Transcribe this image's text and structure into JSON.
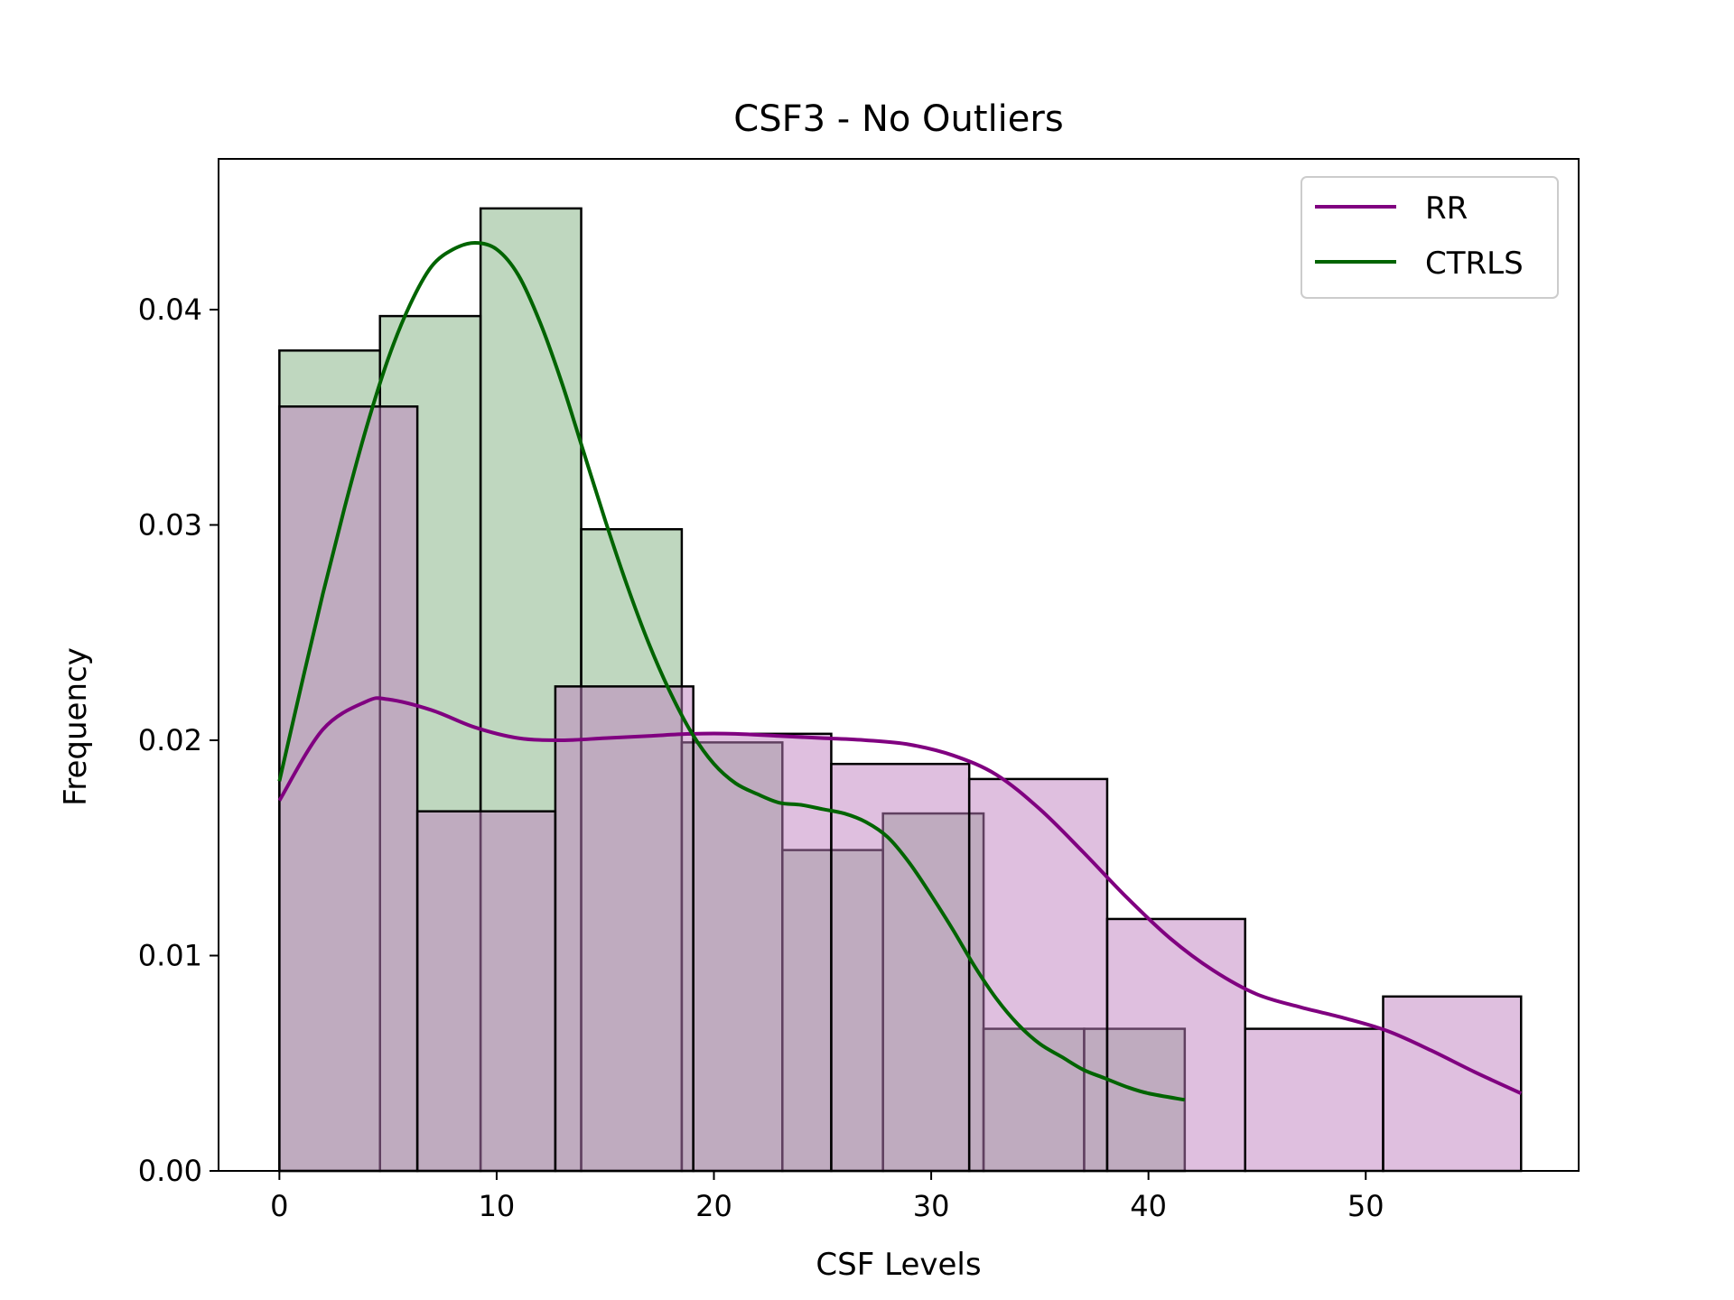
{
  "chart_data": {
    "type": "bar",
    "title": "CSF3 - No Outliers",
    "xlabel": "CSF Levels",
    "ylabel": "Frequency",
    "xlim": [
      -2.8,
      59.8
    ],
    "ylim": [
      0,
      0.047
    ],
    "x_ticks": [
      0,
      10,
      20,
      30,
      40,
      50
    ],
    "x_tick_labels": [
      "0",
      "10",
      "20",
      "30",
      "40",
      "50"
    ],
    "y_ticks": [
      0,
      0.01,
      0.02,
      0.03,
      0.04
    ],
    "y_tick_labels": [
      "0.00",
      "0.01",
      "0.02",
      "0.03",
      "0.04"
    ],
    "legend_position": "top-right",
    "grid": false,
    "series": [
      {
        "name": "RR",
        "line_color": "#800080",
        "fill_color": "#bf7fbf",
        "bins": [
          {
            "x0": 0,
            "x1": 6.35,
            "y": 0.0355
          },
          {
            "x0": 6.35,
            "x1": 12.7,
            "y": 0.0167
          },
          {
            "x0": 12.7,
            "x1": 19.05,
            "y": 0.0225
          },
          {
            "x0": 19.05,
            "x1": 25.4,
            "y": 0.0203
          },
          {
            "x0": 25.4,
            "x1": 31.75,
            "y": 0.0189
          },
          {
            "x0": 31.75,
            "x1": 38.1,
            "y": 0.0182
          },
          {
            "x0": 38.1,
            "x1": 44.45,
            "y": 0.0117
          },
          {
            "x0": 44.45,
            "x1": 50.8,
            "y": 0.0066
          },
          {
            "x0": 50.8,
            "x1": 57.15,
            "y": 0.0081
          }
        ],
        "kde": {
          "x": [
            0,
            2,
            4,
            5,
            7,
            9,
            11,
            13,
            15,
            17,
            19,
            21,
            23,
            25,
            27,
            29,
            31,
            33,
            35,
            37,
            39,
            41,
            43,
            45,
            47,
            49,
            51,
            53,
            55,
            57.15
          ],
          "y": [
            0.0172,
            0.0205,
            0.0218,
            0.0219,
            0.0214,
            0.0206,
            0.0201,
            0.02,
            0.0201,
            0.0202,
            0.0203,
            0.0203,
            0.0202,
            0.0201,
            0.02,
            0.0198,
            0.0193,
            0.0184,
            0.0168,
            0.0148,
            0.0127,
            0.0108,
            0.0093,
            0.0082,
            0.0076,
            0.0071,
            0.0065,
            0.0056,
            0.0046,
            0.0036
          ]
        }
      },
      {
        "name": "CTRLS",
        "line_color": "#006400",
        "fill_color": "#7fb07f",
        "bins": [
          {
            "x0": 0,
            "x1": 4.63,
            "y": 0.0381
          },
          {
            "x0": 4.63,
            "x1": 9.26,
            "y": 0.0397
          },
          {
            "x0": 9.26,
            "x1": 13.89,
            "y": 0.0447
          },
          {
            "x0": 13.89,
            "x1": 18.52,
            "y": 0.0298
          },
          {
            "x0": 18.52,
            "x1": 23.15,
            "y": 0.0199
          },
          {
            "x0": 23.15,
            "x1": 27.78,
            "y": 0.0149
          },
          {
            "x0": 27.78,
            "x1": 32.41,
            "y": 0.0166
          },
          {
            "x0": 32.41,
            "x1": 37.04,
            "y": 0.0066
          },
          {
            "x0": 37.04,
            "x1": 41.67,
            "y": 0.0066
          }
        ],
        "kde": {
          "x": [
            0,
            1,
            2,
            3,
            4,
            5,
            6,
            7,
            8,
            9,
            10,
            11,
            12,
            13,
            14,
            15,
            16,
            17,
            18,
            19,
            20,
            21,
            22,
            23,
            24,
            25,
            26,
            27,
            28,
            29,
            30,
            31,
            32,
            33,
            34,
            35,
            36,
            37,
            38,
            39,
            40,
            41.67
          ],
          "y": [
            0.0181,
            0.0225,
            0.0268,
            0.0308,
            0.0345,
            0.0377,
            0.0402,
            0.042,
            0.0428,
            0.0431,
            0.0428,
            0.0416,
            0.0394,
            0.0366,
            0.0334,
            0.0302,
            0.0272,
            0.0245,
            0.0222,
            0.0203,
            0.0189,
            0.018,
            0.0175,
            0.0171,
            0.017,
            0.0168,
            0.0166,
            0.0162,
            0.0155,
            0.0143,
            0.0128,
            0.0112,
            0.0095,
            0.008,
            0.0068,
            0.0059,
            0.0053,
            0.0047,
            0.0043,
            0.0039,
            0.0036,
            0.0033
          ]
        }
      }
    ]
  }
}
